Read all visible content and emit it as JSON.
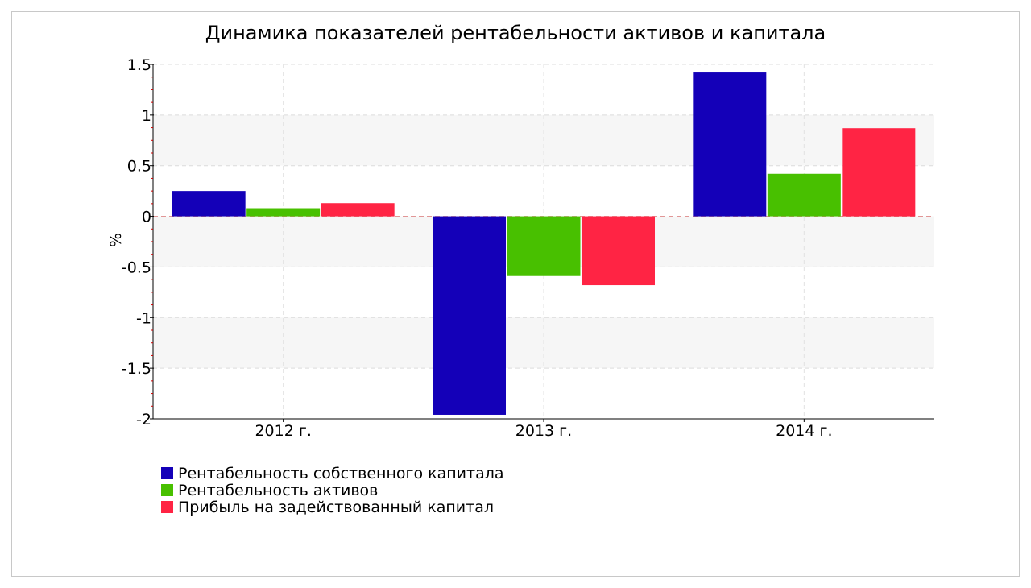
{
  "chart_data": {
    "type": "bar",
    "title": "Динамика показателей рентабельности активов и капитала",
    "ylabel": "%",
    "xlabel": "",
    "categories": [
      "2012 г.",
      "2013 г.",
      "2014 г."
    ],
    "ylim": [
      -2,
      1.5
    ],
    "yticks": [
      1.5,
      1,
      0.5,
      0,
      -0.5,
      -1,
      -1.5,
      -2
    ],
    "ytick_labels": [
      "1.5",
      "1",
      "0.5",
      "0",
      "-0.5",
      "-1",
      "-1.5",
      "-2"
    ],
    "grid": true,
    "legend_position": "bottom-left",
    "series": [
      {
        "name": "Рентабельность собственного капитала",
        "color": "#1400b8",
        "values": [
          0.25,
          -1.96,
          1.42
        ]
      },
      {
        "name": "Рентабельность активов",
        "color": "#48c000",
        "values": [
          0.08,
          -0.59,
          0.42
        ]
      },
      {
        "name": "Прибыль на задействованный капитал",
        "color": "#ff2444",
        "values": [
          0.13,
          -0.68,
          0.87
        ]
      }
    ]
  }
}
